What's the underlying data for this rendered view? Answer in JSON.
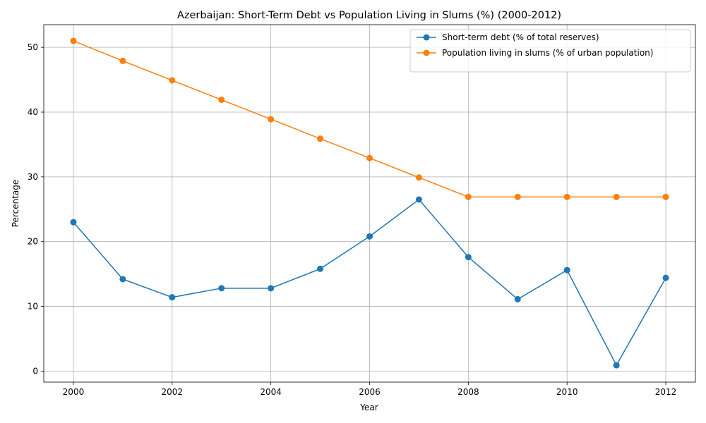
{
  "chart_data": {
    "type": "line",
    "title": "Azerbaijan: Short-Term Debt vs Population Living in Slums (%) (2000-2012)",
    "xlabel": "Year",
    "ylabel": "Percentage",
    "x": [
      2000,
      2001,
      2002,
      2003,
      2004,
      2005,
      2006,
      2007,
      2008,
      2009,
      2010,
      2011,
      2012
    ],
    "xlim": [
      1999.4,
      2012.6
    ],
    "ylim": [
      -1.7,
      53.5
    ],
    "xticks": [
      2000,
      2002,
      2004,
      2006,
      2008,
      2010,
      2012
    ],
    "yticks": [
      0,
      10,
      20,
      30,
      40,
      50
    ],
    "grid": true,
    "legend_position": "top-right",
    "series": [
      {
        "name": "Short-term debt (% of total reserves)",
        "color": "#1f77b4",
        "marker": "circle",
        "values": [
          23.0,
          14.2,
          11.4,
          12.8,
          12.8,
          15.8,
          20.8,
          26.5,
          17.6,
          11.1,
          15.6,
          0.9,
          14.4
        ]
      },
      {
        "name": "Population living in slums (% of urban population)",
        "color": "#ff7f0e",
        "marker": "circle",
        "values": [
          51.0,
          47.9,
          44.9,
          41.9,
          38.9,
          35.9,
          32.9,
          29.9,
          26.9,
          26.9,
          26.9,
          26.9,
          26.9
        ]
      }
    ]
  }
}
